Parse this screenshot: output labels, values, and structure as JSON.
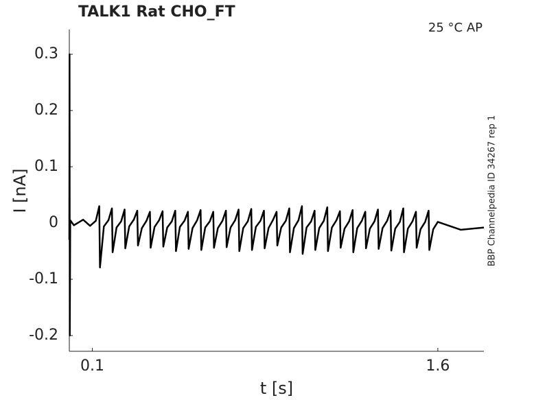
{
  "chart_data": {
    "type": "line",
    "title": "TALK1  Rat  CHO_FT",
    "annotation": "25 °C  AP",
    "side_note": "BBP Channelpedia ID 34267 rep 1",
    "xlabel": "t [s]",
    "ylabel": "I [nA]",
    "color": "#000000",
    "xlim": [
      0,
      1.8
    ],
    "ylim": [
      -0.228,
      0.344
    ],
    "xticks": [
      0.1,
      1.6
    ],
    "yticks": [
      -0.2,
      -0.1,
      0,
      0.1,
      0.2,
      0.3
    ],
    "x": [
      0,
      0.001,
      0.002,
      0.004,
      0.02,
      0.06,
      0.09,
      0.115,
      0.13,
      0.133,
      0.15,
      0.17,
      0.185,
      0.188,
      0.205,
      0.225,
      0.24,
      0.243,
      0.26,
      0.28,
      0.295,
      0.298,
      0.315,
      0.335,
      0.35,
      0.353,
      0.37,
      0.39,
      0.405,
      0.408,
      0.425,
      0.445,
      0.46,
      0.463,
      0.48,
      0.5,
      0.515,
      0.518,
      0.535,
      0.555,
      0.57,
      0.573,
      0.59,
      0.61,
      0.625,
      0.628,
      0.645,
      0.665,
      0.68,
      0.683,
      0.7,
      0.72,
      0.735,
      0.738,
      0.755,
      0.775,
      0.79,
      0.793,
      0.81,
      0.83,
      0.845,
      0.848,
      0.865,
      0.885,
      0.9,
      0.903,
      0.92,
      0.94,
      0.955,
      0.958,
      0.975,
      0.995,
      1.01,
      1.013,
      1.03,
      1.05,
      1.065,
      1.068,
      1.085,
      1.105,
      1.12,
      1.123,
      1.14,
      1.16,
      1.175,
      1.178,
      1.195,
      1.215,
      1.23,
      1.233,
      1.25,
      1.27,
      1.285,
      1.288,
      1.305,
      1.325,
      1.34,
      1.343,
      1.36,
      1.38,
      1.395,
      1.398,
      1.415,
      1.435,
      1.45,
      1.453,
      1.47,
      1.49,
      1.505,
      1.508,
      1.525,
      1.545,
      1.56,
      1.563,
      1.58,
      1.6,
      1.7,
      1.8
    ],
    "values": [
      -0.03,
      0.3,
      -0.2,
      0.005,
      -0.004,
      0.006,
      -0.005,
      0.004,
      0.03,
      -0.079,
      -0.006,
      0.005,
      0.026,
      -0.052,
      -0.008,
      0.003,
      0.024,
      -0.045,
      -0.006,
      0.006,
      0.022,
      -0.04,
      -0.009,
      0.004,
      0.02,
      -0.044,
      -0.007,
      0.005,
      0.021,
      -0.042,
      -0.008,
      0.003,
      0.022,
      -0.05,
      -0.007,
      0.004,
      0.02,
      -0.046,
      -0.009,
      0.005,
      0.023,
      -0.048,
      -0.008,
      0.003,
      0.02,
      -0.044,
      -0.009,
      0.004,
      0.022,
      -0.043,
      -0.008,
      0.005,
      0.024,
      -0.05,
      -0.009,
      0.003,
      0.025,
      -0.048,
      -0.007,
      0.004,
      0.022,
      -0.045,
      -0.009,
      0.006,
      0.02,
      -0.04,
      -0.008,
      0.004,
      0.026,
      -0.052,
      -0.009,
      0.005,
      0.03,
      -0.055,
      -0.008,
      0.003,
      0.022,
      -0.048,
      -0.009,
      0.004,
      0.028,
      -0.05,
      -0.008,
      0.005,
      0.021,
      -0.044,
      -0.01,
      0.003,
      0.023,
      -0.052,
      -0.009,
      0.004,
      0.02,
      -0.045,
      -0.01,
      0.003,
      0.024,
      -0.046,
      -0.009,
      0.004,
      0.022,
      -0.049,
      -0.01,
      0.002,
      0.026,
      -0.052,
      -0.01,
      0.003,
      0.02,
      -0.044,
      -0.011,
      0.002,
      0.022,
      -0.048,
      -0.011,
      0.002,
      -0.012,
      -0.008
    ]
  }
}
